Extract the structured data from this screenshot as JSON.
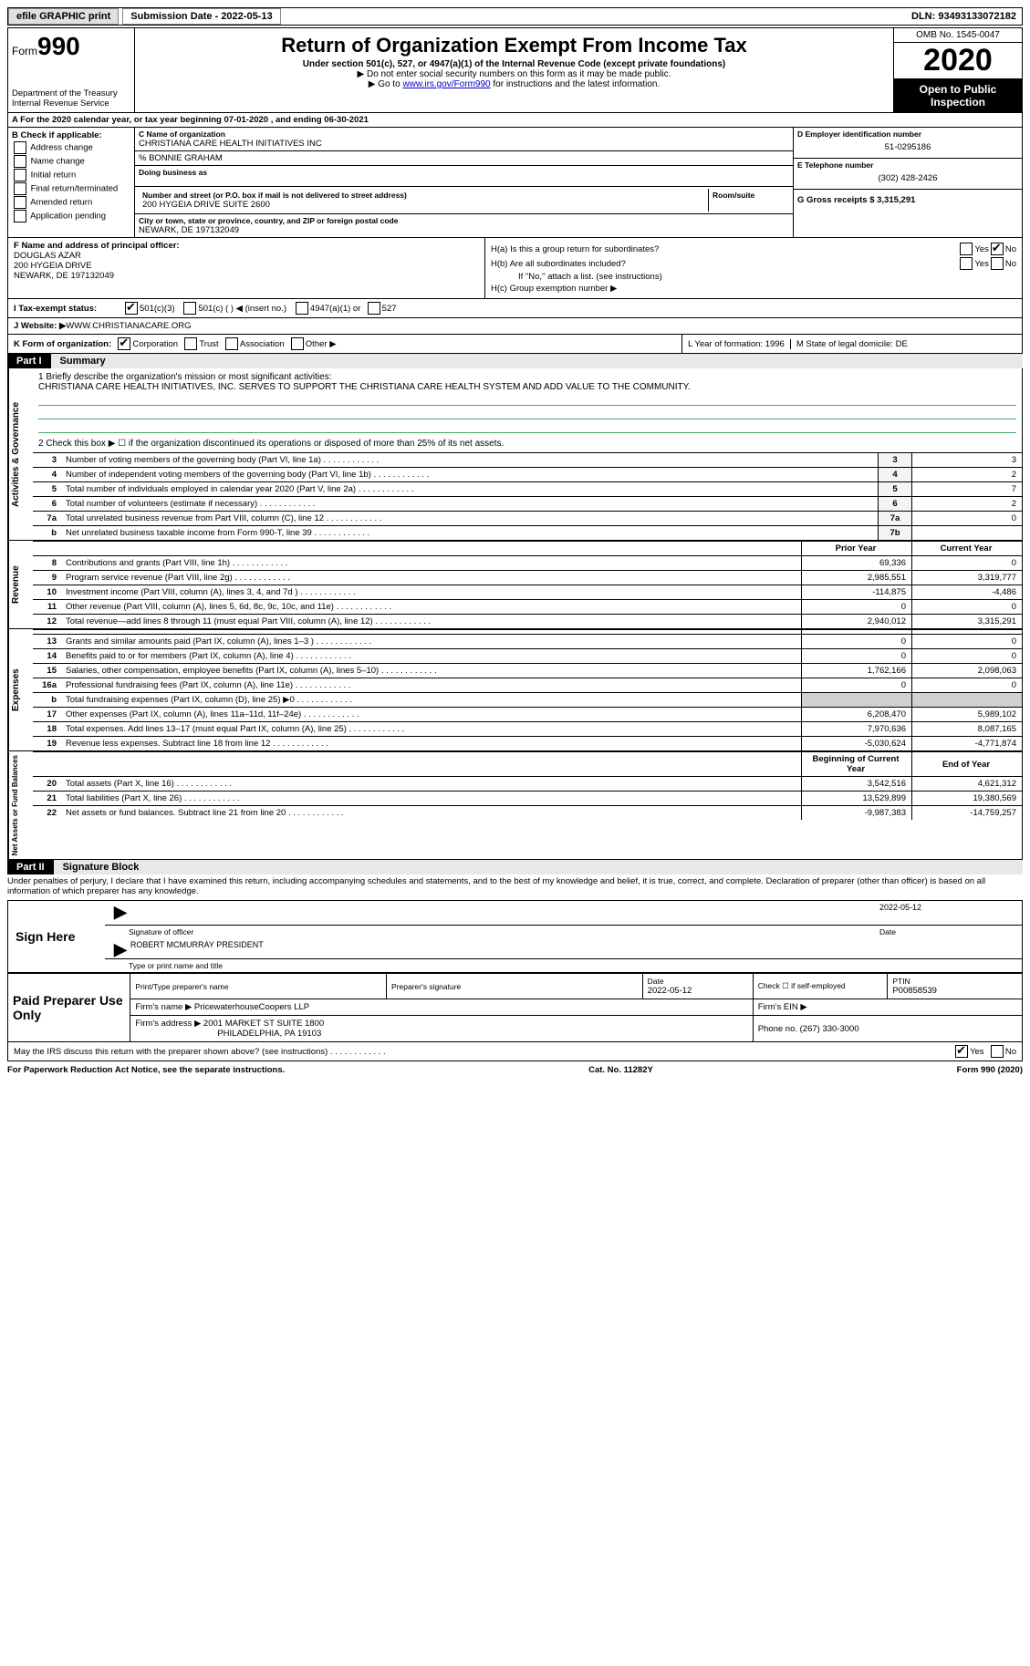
{
  "topbar": {
    "efile_btn": "efile GRAPHIC print",
    "sub_label": "Submission Date - 2022-05-13",
    "dln_label": "DLN: 93493133072182"
  },
  "header": {
    "form_prefix": "Form",
    "form_num": "990",
    "dept": "Department of the Treasury\nInternal Revenue Service",
    "title": "Return of Organization Exempt From Income Tax",
    "sub": "Under section 501(c), 527, or 4947(a)(1) of the Internal Revenue Code (except private foundations)",
    "note1": "▶ Do not enter social security numbers on this form as it may be made public.",
    "note2_pre": "▶ Go to ",
    "note2_link": "www.irs.gov/Form990",
    "note2_post": " for instructions and the latest information.",
    "omb": "OMB No. 1545-0047",
    "year": "2020",
    "inspect": "Open to Public Inspection"
  },
  "row_a": "A For the 2020 calendar year, or tax year beginning 07-01-2020    , and ending 06-30-2021",
  "col_b": {
    "title": "B Check if applicable:",
    "opts": [
      "Address change",
      "Name change",
      "Initial return",
      "Final return/terminated",
      "Amended return",
      "Application pending"
    ]
  },
  "col_c": {
    "name_label": "C Name of organization",
    "name": "CHRISTIANA CARE HEALTH INITIATIVES INC",
    "care_of": "% BONNIE GRAHAM",
    "dba_label": "Doing business as",
    "addr_label": "Number and street (or P.O. box if mail is not delivered to street address)",
    "room_label": "Room/suite",
    "addr": "200 HYGEIA DRIVE SUITE 2600",
    "city_label": "City or town, state or province, country, and ZIP or foreign postal code",
    "city": "NEWARK, DE  197132049"
  },
  "col_de": {
    "d_label": "D Employer identification number",
    "d_val": "51-0295186",
    "e_label": "E Telephone number",
    "e_val": "(302) 428-2426",
    "g_label": "G Gross receipts $ 3,315,291"
  },
  "row_f": {
    "label": "F  Name and address of principal officer:",
    "name": "DOUGLAS AZAR",
    "addr1": "200 HYGEIA DRIVE",
    "addr2": "NEWARK, DE  197132049"
  },
  "row_h": {
    "ha": "H(a)  Is this a group return for subordinates?",
    "hb": "H(b)  Are all subordinates included?",
    "hb_note": "If \"No,\" attach a list. (see instructions)",
    "hc": "H(c)  Group exemption number ▶",
    "yes": "Yes",
    "no": "No"
  },
  "row_i": {
    "label": "I    Tax-exempt status:",
    "o1": "501(c)(3)",
    "o2": "501(c) (  ) ◀ (insert no.)",
    "o3": "4947(a)(1) or",
    "o4": "527"
  },
  "row_j": {
    "label": "J   Website: ▶",
    "val": " WWW.CHRISTIANACARE.ORG"
  },
  "row_k": {
    "label": "K Form of organization:",
    "o1": "Corporation",
    "o2": "Trust",
    "o3": "Association",
    "o4": "Other ▶"
  },
  "row_lm": {
    "l": "L Year of formation: 1996",
    "m": "M State of legal domicile: DE"
  },
  "part1": {
    "tab": "Part I",
    "title": "Summary",
    "q1": "1   Briefly describe the organization's mission or most significant activities:",
    "q1_ans": "CHRISTIANA CARE HEALTH INITIATIVES, INC. SERVES TO SUPPORT THE CHRISTIANA CARE HEALTH SYSTEM AND ADD VALUE TO THE COMMUNITY.",
    "q2": "2   Check this box ▶ ☐  if the organization discontinued its operations or disposed of more than 25% of its net assets.",
    "side1": "Activities & Governance",
    "side2": "Revenue",
    "side3": "Expenses",
    "side4": "Net Assets or Fund Balances",
    "rows_gov": [
      {
        "n": "3",
        "d": "Number of voting members of the governing body (Part VI, line 1a)",
        "box": "3",
        "v": "3"
      },
      {
        "n": "4",
        "d": "Number of independent voting members of the governing body (Part VI, line 1b)",
        "box": "4",
        "v": "2"
      },
      {
        "n": "5",
        "d": "Total number of individuals employed in calendar year 2020 (Part V, line 2a)",
        "box": "5",
        "v": "7"
      },
      {
        "n": "6",
        "d": "Total number of volunteers (estimate if necessary)",
        "box": "6",
        "v": "2"
      },
      {
        "n": "7a",
        "d": "Total unrelated business revenue from Part VIII, column (C), line 12",
        "box": "7a",
        "v": "0"
      },
      {
        "n": "b",
        "d": "Net unrelated business taxable income from Form 990-T, line 39",
        "box": "7b",
        "v": ""
      }
    ],
    "hdr_prior": "Prior Year",
    "hdr_curr": "Current Year",
    "rows_rev": [
      {
        "n": "8",
        "d": "Contributions and grants (Part VIII, line 1h)",
        "p": "69,336",
        "c": "0"
      },
      {
        "n": "9",
        "d": "Program service revenue (Part VIII, line 2g)",
        "p": "2,985,551",
        "c": "3,319,777"
      },
      {
        "n": "10",
        "d": "Investment income (Part VIII, column (A), lines 3, 4, and 7d )",
        "p": "-114,875",
        "c": "-4,486"
      },
      {
        "n": "11",
        "d": "Other revenue (Part VIII, column (A), lines 5, 6d, 8c, 9c, 10c, and 11e)",
        "p": "0",
        "c": "0"
      },
      {
        "n": "12",
        "d": "Total revenue—add lines 8 through 11 (must equal Part VIII, column (A), line 12)",
        "p": "2,940,012",
        "c": "3,315,291"
      }
    ],
    "rows_exp": [
      {
        "n": "13",
        "d": "Grants and similar amounts paid (Part IX, column (A), lines 1–3 )",
        "p": "0",
        "c": "0"
      },
      {
        "n": "14",
        "d": "Benefits paid to or for members (Part IX, column (A), line 4)",
        "p": "0",
        "c": "0"
      },
      {
        "n": "15",
        "d": "Salaries, other compensation, employee benefits (Part IX, column (A), lines 5–10)",
        "p": "1,762,166",
        "c": "2,098,063"
      },
      {
        "n": "16a",
        "d": "Professional fundraising fees (Part IX, column (A), line 11e)",
        "p": "0",
        "c": "0"
      },
      {
        "n": "b",
        "d": "Total fundraising expenses (Part IX, column (D), line 25) ▶0",
        "p": "",
        "c": "",
        "shade": true
      },
      {
        "n": "17",
        "d": "Other expenses (Part IX, column (A), lines 11a–11d, 11f–24e)",
        "p": "6,208,470",
        "c": "5,989,102"
      },
      {
        "n": "18",
        "d": "Total expenses. Add lines 13–17 (must equal Part IX, column (A), line 25)",
        "p": "7,970,636",
        "c": "8,087,165"
      },
      {
        "n": "19",
        "d": "Revenue less expenses. Subtract line 18 from line 12",
        "p": "-5,030,624",
        "c": "-4,771,874"
      }
    ],
    "hdr_beg": "Beginning of Current Year",
    "hdr_end": "End of Year",
    "rows_net": [
      {
        "n": "20",
        "d": "Total assets (Part X, line 16)",
        "p": "3,542,516",
        "c": "4,621,312"
      },
      {
        "n": "21",
        "d": "Total liabilities (Part X, line 26)",
        "p": "13,529,899",
        "c": "19,380,569"
      },
      {
        "n": "22",
        "d": "Net assets or fund balances. Subtract line 21 from line 20",
        "p": "-9,987,383",
        "c": "-14,759,257"
      }
    ]
  },
  "part2": {
    "tab": "Part II",
    "title": "Signature Block",
    "decl": "Under penalties of perjury, I declare that I have examined this return, including accompanying schedules and statements, and to the best of my knowledge and belief, it is true, correct, and complete. Declaration of preparer (other than officer) is based on all information of which preparer has any knowledge.",
    "sign_here": "Sign Here",
    "sig_officer": "Signature of officer",
    "sig_date": "Date",
    "sig_date_v": "2022-05-12",
    "sig_name": "ROBERT MCMURRAY PRESIDENT",
    "sig_name_label": "Type or print name and title",
    "paid": "Paid Preparer Use Only",
    "pt_name": "Print/Type preparer's name",
    "pt_sig": "Preparer's signature",
    "pt_date": "Date",
    "pt_date_v": "2022-05-12",
    "pt_self": "Check ☐ if self-employed",
    "ptin": "PTIN",
    "ptin_v": "P00858539",
    "firm_name": "Firm's name    ▶ PricewaterhouseCoopers LLP",
    "firm_ein": "Firm's EIN ▶",
    "firm_addr": "Firm's address ▶ 2001 MARKET ST SUITE 1800",
    "firm_addr2": "PHILADELPHIA, PA  19103",
    "phone": "Phone no. (267) 330-3000",
    "discuss": "May the IRS discuss this return with the preparer shown above? (see instructions)",
    "yes": "Yes",
    "no": "No"
  },
  "footer": {
    "left": "For Paperwork Reduction Act Notice, see the separate instructions.",
    "mid": "Cat. No. 11282Y",
    "right": "Form 990 (2020)"
  }
}
